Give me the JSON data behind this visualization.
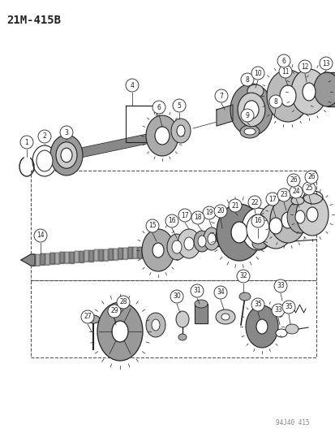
{
  "title": "21M-415B",
  "watermark": "94J40 415",
  "bg_color": "#ffffff",
  "fig_width": 4.14,
  "fig_height": 5.33,
  "dpi": 100,
  "lc": "#222222",
  "pc": "#444444",
  "dc": "#555555",
  "gray_fill": "#bbbbbb",
  "dark_fill": "#666666",
  "light_fill": "#dddddd"
}
